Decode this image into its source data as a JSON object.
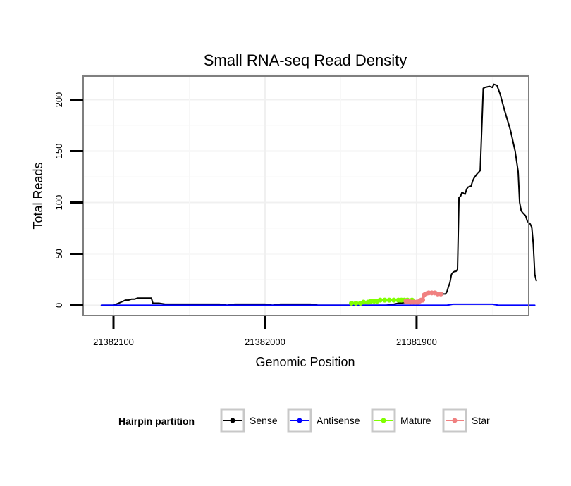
{
  "chart_data": {
    "type": "line",
    "title": "Small RNA-seq Read Density",
    "xlabel": "Genomic Position",
    "ylabel": "Total Reads",
    "xlim": [
      21382120,
      21381826
    ],
    "ylim": [
      -10,
      223
    ],
    "x_ticks": [
      {
        "value": 21382100,
        "label": "21382100"
      },
      {
        "value": 21382000,
        "label": "21382000"
      },
      {
        "value": 21381900,
        "label": "21381900"
      }
    ],
    "y_ticks": [
      {
        "value": 0,
        "label": "0"
      },
      {
        "value": 50,
        "label": "50"
      },
      {
        "value": 100,
        "label": "100"
      },
      {
        "value": 150,
        "label": "150"
      },
      {
        "value": 200,
        "label": "200"
      }
    ],
    "legend": {
      "title": "Hairpin partition",
      "position": "bottom",
      "entries": [
        "Sense",
        "Antisense",
        "Mature",
        "Star"
      ]
    },
    "series": [
      {
        "name": "Sense",
        "color": "#000000",
        "points": [
          [
            21382108,
            0
          ],
          [
            21382100,
            0
          ],
          [
            21382095,
            3
          ],
          [
            21382092,
            5
          ],
          [
            21382090,
            5
          ],
          [
            21382088,
            6
          ],
          [
            21382086,
            6
          ],
          [
            21382084,
            7
          ],
          [
            21382080,
            7
          ],
          [
            21382075,
            7
          ],
          [
            21382074,
            2
          ],
          [
            21382070,
            2
          ],
          [
            21382066,
            1
          ],
          [
            21382060,
            1
          ],
          [
            21382055,
            1
          ],
          [
            21382052,
            1
          ],
          [
            21382030,
            1
          ],
          [
            21382025,
            0
          ],
          [
            21382020,
            1
          ],
          [
            21382000,
            1
          ],
          [
            21381995,
            0
          ],
          [
            21381990,
            1
          ],
          [
            21381970,
            1
          ],
          [
            21381965,
            0
          ],
          [
            21381920,
            0
          ],
          [
            21381915,
            1
          ],
          [
            21381912,
            2
          ],
          [
            21381905,
            3
          ],
          [
            21381900,
            3
          ],
          [
            21381898,
            5
          ],
          [
            21381896,
            6
          ],
          [
            21381895,
            8
          ],
          [
            21381894,
            10
          ],
          [
            21381892,
            11
          ],
          [
            21381891,
            12
          ],
          [
            21381890,
            12
          ],
          [
            21381888,
            13
          ],
          [
            21381887,
            13
          ],
          [
            21381886,
            12
          ],
          [
            21381884,
            11
          ],
          [
            21381881,
            11
          ],
          [
            21381880,
            13
          ],
          [
            21381879,
            18
          ],
          [
            21381878,
            22
          ],
          [
            21381877,
            30
          ],
          [
            21381876,
            32
          ],
          [
            21381875,
            33
          ],
          [
            21381874,
            33
          ],
          [
            21381873,
            35
          ],
          [
            21381872,
            105
          ],
          [
            21381871,
            106
          ],
          [
            21381870,
            110
          ],
          [
            21381868,
            108
          ],
          [
            21381867,
            113
          ],
          [
            21381866,
            115
          ],
          [
            21381864,
            116
          ],
          [
            21381863,
            121
          ],
          [
            21381862,
            124
          ],
          [
            21381860,
            128
          ],
          [
            21381858,
            131
          ],
          [
            21381856,
            211
          ],
          [
            21381855,
            212
          ],
          [
            21381852,
            213
          ],
          [
            21381850,
            212
          ],
          [
            21381849,
            215
          ],
          [
            21381847,
            214
          ],
          [
            21381846,
            210
          ],
          [
            21381845,
            206
          ],
          [
            21381842,
            190
          ],
          [
            21381838,
            170
          ],
          [
            21381835,
            150
          ],
          [
            21381833,
            130
          ],
          [
            21381832,
            100
          ],
          [
            21381831,
            92
          ],
          [
            21381830,
            90
          ],
          [
            21381828,
            87
          ],
          [
            21381827,
            82
          ],
          [
            21381825,
            79
          ],
          [
            21381824,
            76
          ],
          [
            21381823,
            60
          ],
          [
            21381822,
            30
          ],
          [
            21381821,
            24
          ]
        ]
      },
      {
        "name": "Antisense",
        "color": "#0000ff",
        "points": [
          [
            21382108,
            0
          ],
          [
            21381880,
            0
          ],
          [
            21381876,
            1
          ],
          [
            21381850,
            1
          ],
          [
            21381846,
            0
          ],
          [
            21381828,
            0
          ],
          [
            21381822,
            0
          ]
        ]
      },
      {
        "name": "Mature",
        "color": "#80ff00",
        "points": [
          [
            21381943,
            2
          ],
          [
            21381940,
            2
          ],
          [
            21381937,
            2
          ],
          [
            21381935,
            3
          ],
          [
            21381932,
            3
          ],
          [
            21381930,
            4
          ],
          [
            21381928,
            4
          ],
          [
            21381926,
            4
          ],
          [
            21381924,
            5
          ],
          [
            21381921,
            5
          ],
          [
            21381918,
            5
          ],
          [
            21381915,
            5
          ],
          [
            21381912,
            5
          ],
          [
            21381910,
            5
          ],
          [
            21381908,
            5
          ],
          [
            21381906,
            5
          ],
          [
            21381903,
            5
          ]
        ]
      },
      {
        "name": "Star",
        "color": "#f08080",
        "points": [
          [
            21381907,
            4
          ],
          [
            21381906,
            4
          ],
          [
            21381905,
            4
          ],
          [
            21381904,
            3
          ],
          [
            21381902,
            3
          ],
          [
            21381900,
            3
          ],
          [
            21381899,
            3
          ],
          [
            21381898,
            4
          ],
          [
            21381897,
            5
          ],
          [
            21381896,
            5
          ],
          [
            21381895,
            10
          ],
          [
            21381894,
            11
          ],
          [
            21381892,
            12
          ],
          [
            21381890,
            12
          ],
          [
            21381888,
            12
          ],
          [
            21381886,
            11
          ],
          [
            21381884,
            11
          ]
        ]
      }
    ]
  }
}
